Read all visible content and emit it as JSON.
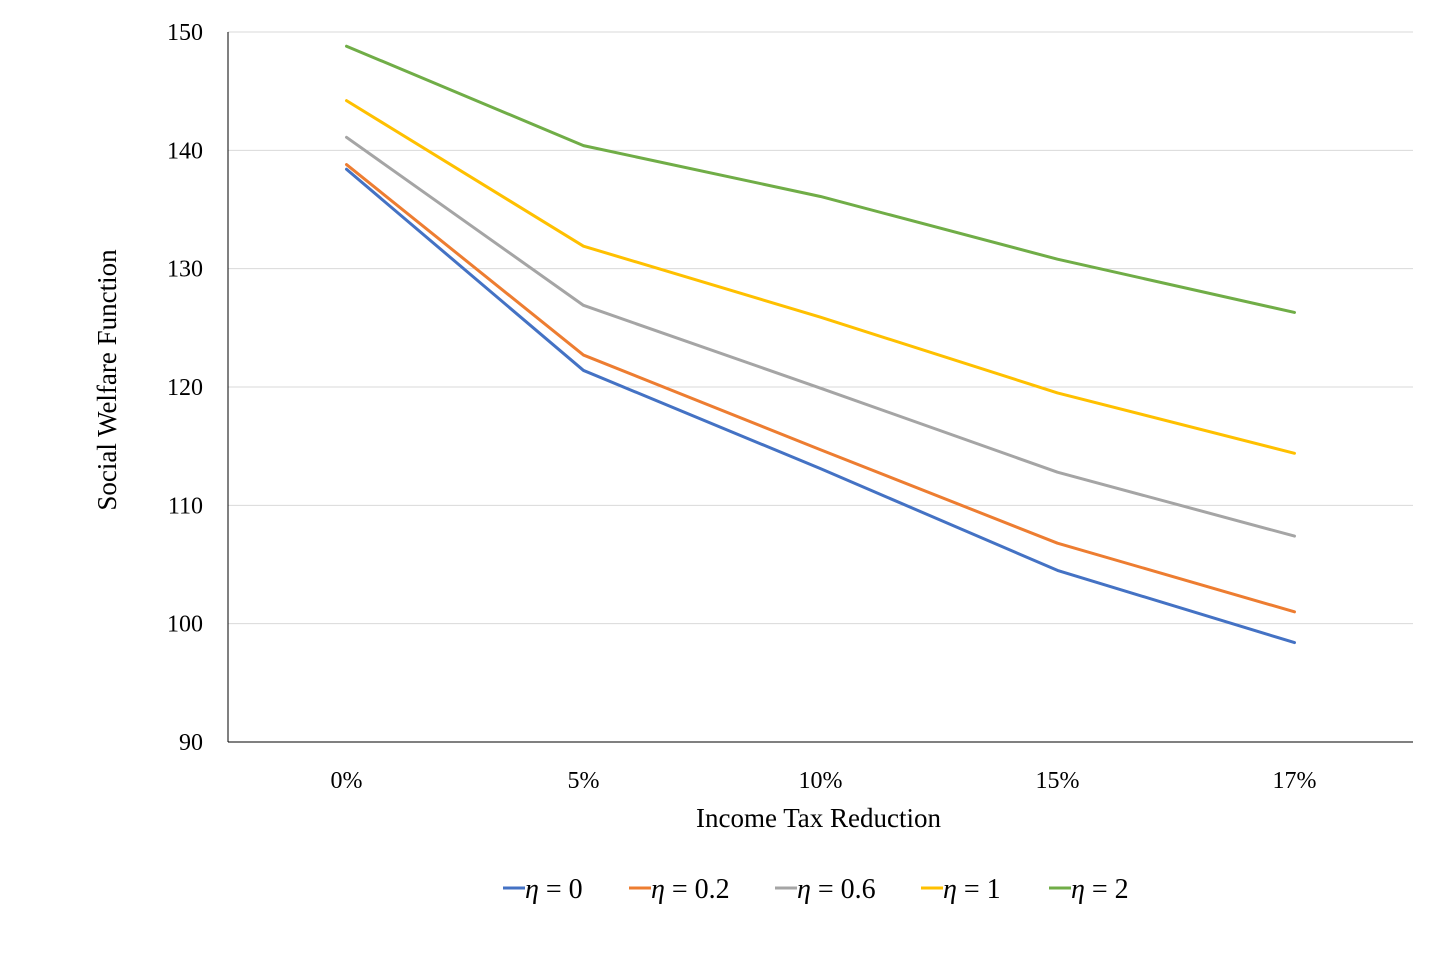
{
  "chart_data": {
    "type": "line",
    "title": "",
    "xlabel": "Income Tax Reduction",
    "ylabel": "Social Welfare Function",
    "categories": [
      "0%",
      "5%",
      "10%",
      "15%",
      "17%"
    ],
    "ylim": [
      90,
      150
    ],
    "yticks": [
      90,
      100,
      110,
      120,
      130,
      140,
      150
    ],
    "grid": true,
    "legend_position": "bottom",
    "series": [
      {
        "name": "η = 0",
        "symbol": "η",
        "rest": " = 0",
        "color": "#4472C4",
        "values": [
          138.4,
          121.4,
          113.1,
          104.5,
          98.4
        ]
      },
      {
        "name": "η = 0.2",
        "symbol": "η",
        "rest": " = 0.2",
        "color": "#ED7D31",
        "values": [
          138.8,
          122.7,
          114.7,
          106.8,
          101.0
        ]
      },
      {
        "name": "η = 0.6",
        "symbol": "η",
        "rest": " = 0.6",
        "color": "#A5A5A5",
        "values": [
          141.1,
          126.9,
          119.9,
          112.8,
          107.4
        ]
      },
      {
        "name": "η = 1",
        "symbol": "η",
        "rest": " = 1",
        "color": "#FFC000",
        "values": [
          144.2,
          131.9,
          125.9,
          119.5,
          114.4
        ]
      },
      {
        "name": "η = 2",
        "symbol": "η",
        "rest": " = 2",
        "color": "#70AD47",
        "values": [
          148.8,
          140.4,
          136.1,
          130.8,
          126.3
        ]
      }
    ]
  }
}
